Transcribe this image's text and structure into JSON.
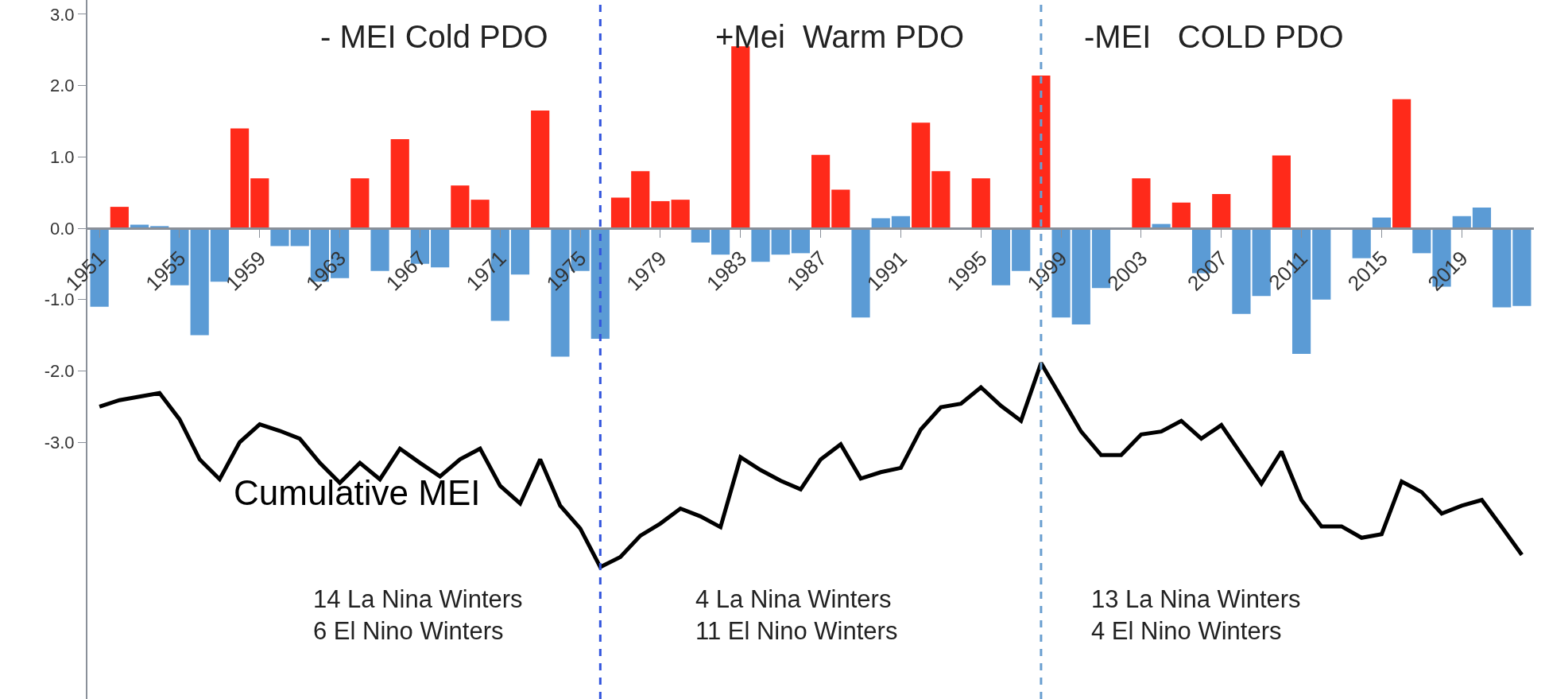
{
  "chart_data": {
    "type": "bar",
    "x": [
      1951,
      1952,
      1953,
      1954,
      1955,
      1956,
      1957,
      1958,
      1959,
      1960,
      1961,
      1962,
      1963,
      1964,
      1965,
      1966,
      1967,
      1968,
      1969,
      1970,
      1971,
      1972,
      1973,
      1974,
      1975,
      1976,
      1977,
      1978,
      1979,
      1980,
      1981,
      1982,
      1983,
      1984,
      1985,
      1986,
      1987,
      1988,
      1989,
      1990,
      1991,
      1992,
      1993,
      1994,
      1995,
      1996,
      1997,
      1998,
      1999,
      2000,
      2001,
      2002,
      2003,
      2004,
      2005,
      2006,
      2007,
      2008,
      2009,
      2010,
      2011,
      2012,
      2013,
      2014,
      2015,
      2016,
      2017,
      2018,
      2019,
      2020,
      2021,
      2022
    ],
    "series": [
      {
        "values": [
          -1.1,
          0.3,
          0.05,
          0.03,
          -0.8,
          -1.5,
          -0.75,
          1.4,
          0.7,
          -0.25,
          -0.25,
          -0.75,
          -0.7,
          0.7,
          -0.6,
          1.25,
          -0.5,
          -0.55,
          0.6,
          0.4,
          -1.3,
          -0.65,
          1.65,
          -1.8,
          -0.6,
          -1.55,
          0.43,
          0.8,
          0.38,
          0.4,
          -0.2,
          -0.37,
          2.55,
          -0.47,
          -0.37,
          -0.35,
          1.03,
          0.54,
          -1.25,
          0.14,
          0.17,
          1.48,
          0.8,
          0.0,
          0.7,
          -0.8,
          -0.6,
          2.14,
          -1.25,
          -1.35,
          -0.84,
          0.0,
          0.7,
          0.06,
          0.36,
          -0.63,
          0.48,
          -1.2,
          -0.95,
          1.02,
          -1.76,
          -1.0,
          0.0,
          -0.42,
          0.15,
          1.81,
          -0.35,
          -0.82,
          0.17,
          0.29,
          -1.11,
          -1.09
        ],
        "colors": [
          "#5b9bd5",
          "#ff2a1a",
          "#5b9bd5",
          "#5b9bd5",
          "#5b9bd5",
          "#5b9bd5",
          "#5b9bd5",
          "#ff2a1a",
          "#ff2a1a",
          "#5b9bd5",
          "#5b9bd5",
          "#5b9bd5",
          "#5b9bd5",
          "#ff2a1a",
          "#5b9bd5",
          "#ff2a1a",
          "#5b9bd5",
          "#5b9bd5",
          "#ff2a1a",
          "#ff2a1a",
          "#5b9bd5",
          "#5b9bd5",
          "#ff2a1a",
          "#5b9bd5",
          "#5b9bd5",
          "#5b9bd5",
          "#ff2a1a",
          "#ff2a1a",
          "#ff2a1a",
          "#ff2a1a",
          "#5b9bd5",
          "#5b9bd5",
          "#ff2a1a",
          "#5b9bd5",
          "#5b9bd5",
          "#5b9bd5",
          "#ff2a1a",
          "#ff2a1a",
          "#5b9bd5",
          "#5b9bd5",
          "#5b9bd5",
          "#ff2a1a",
          "#ff2a1a",
          "#5b9bd5",
          "#ff2a1a",
          "#5b9bd5",
          "#5b9bd5",
          "#ff2a1a",
          "#5b9bd5",
          "#5b9bd5",
          "#5b9bd5",
          "#5b9bd5",
          "#ff2a1a",
          "#5b9bd5",
          "#ff2a1a",
          "#5b9bd5",
          "#ff2a1a",
          "#5b9bd5",
          "#5b9bd5",
          "#ff2a1a",
          "#5b9bd5",
          "#5b9bd5",
          "#5b9bd5",
          "#5b9bd5",
          "#5b9bd5",
          "#ff2a1a",
          "#5b9bd5",
          "#5b9bd5",
          "#5b9bd5",
          "#5b9bd5",
          "#5b9bd5",
          "#5b9bd5"
        ]
      },
      {
        "type": "line",
        "name": "Cumulative MEI",
        "color": "#000000",
        "values": [
          -2.5,
          -2.41,
          -2.36,
          -2.31,
          -2.68,
          -3.24,
          -3.52,
          -3.0,
          -2.75,
          -2.84,
          -2.95,
          -3.29,
          -3.57,
          -3.29,
          -3.52,
          -3.09,
          -3.29,
          -3.48,
          -3.24,
          -3.09,
          -3.61,
          -3.86,
          -3.24,
          -3.89,
          -4.21,
          -4.75,
          -4.61,
          -4.31,
          -4.14,
          -3.93,
          -4.04,
          -4.19,
          -3.21,
          -3.39,
          -3.54,
          -3.66,
          -3.24,
          -3.03,
          -3.51,
          -3.42,
          -3.36,
          -2.82,
          -2.51,
          -2.46,
          -2.23,
          -2.49,
          -2.7,
          -1.89,
          -2.37,
          -2.85,
          -3.18,
          -3.18,
          -2.89,
          -2.85,
          -2.7,
          -2.95,
          -2.76,
          -3.17,
          -3.58,
          -3.13,
          -3.81,
          -4.18,
          -4.18,
          -4.34,
          -4.29,
          -3.55,
          -3.7,
          -4.0,
          -3.89,
          -3.81,
          -4.19,
          -4.58
        ]
      }
    ],
    "xlim": [
      1950.4,
      2022.6
    ],
    "xticks": [
      1951,
      1955,
      1959,
      1963,
      1967,
      1971,
      1975,
      1979,
      1983,
      1987,
      1991,
      1995,
      1999,
      2003,
      2007,
      2011,
      2015,
      2019
    ],
    "ylim": [
      -6.6,
      3.2
    ],
    "yticks": [
      {
        "value": -3,
        "label": "-3.0"
      },
      {
        "value": -2,
        "label": "-2.0"
      },
      {
        "value": -1,
        "label": "-1.0"
      },
      {
        "value": 0,
        "label": "0.0"
      },
      {
        "value": 1,
        "label": "1.0"
      },
      {
        "value": 2,
        "label": "2.0"
      },
      {
        "value": 3,
        "label": "3.0"
      }
    ],
    "ref_lines": [
      {
        "axis": "x",
        "value": 1976,
        "color": "#3355dd",
        "line_style": "dashed"
      },
      {
        "axis": "x",
        "value": 1998,
        "color": "#6a9fd0",
        "line_style": "dashed"
      }
    ],
    "annotations": [
      "- MEI Cold PDO",
      "+Mei  Warm PDO",
      "-MEI   COLD PDO",
      "14 La Nina Winters\n6 El Nino Winters",
      "4 La Nina Winters\n11 El Nino Winters",
      "13 La Nina Winters\n4 El Nino Winters"
    ],
    "legend": false
  }
}
